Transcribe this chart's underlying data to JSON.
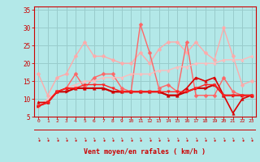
{
  "title": "",
  "xlabel": "Vent moyen/en rafales ( km/h )",
  "background_color": "#b3e8e8",
  "grid_color": "#99cccc",
  "x_ticks": [
    0,
    1,
    2,
    3,
    4,
    5,
    6,
    7,
    8,
    9,
    10,
    11,
    12,
    13,
    14,
    15,
    16,
    17,
    18,
    19,
    20,
    21,
    22,
    23
  ],
  "ylim": [
    5,
    36
  ],
  "xlim": [
    -0.5,
    23.5
  ],
  "yticks": [
    5,
    10,
    15,
    20,
    25,
    30,
    35
  ],
  "series": [
    {
      "color": "#ffaaaa",
      "lw": 1.0,
      "marker": "D",
      "ms": 2.5,
      "data": [
        17,
        11,
        16,
        17,
        22,
        26,
        22,
        22,
        21,
        20,
        20,
        23,
        20,
        24,
        26,
        26,
        23,
        26,
        23,
        21,
        30,
        22,
        14,
        15
      ]
    },
    {
      "color": "#ff6666",
      "lw": 1.0,
      "marker": "D",
      "ms": 2.5,
      "data": [
        8,
        9,
        12,
        13,
        17,
        13,
        16,
        17,
        17,
        13,
        12,
        31,
        23,
        13,
        14,
        12,
        26,
        11,
        11,
        11,
        16,
        12,
        11,
        11
      ]
    },
    {
      "color": "#ffbbbb",
      "lw": 1.0,
      "marker": "^",
      "ms": 2.5,
      "data": [
        8,
        10,
        12,
        13,
        14,
        15,
        15,
        16,
        16,
        16,
        17,
        17,
        17,
        18,
        18,
        19,
        19,
        20,
        20,
        20,
        21,
        21,
        21,
        22
      ]
    },
    {
      "color": "#dd0000",
      "lw": 1.2,
      "marker": "^",
      "ms": 2.5,
      "data": [
        9,
        9,
        12,
        13,
        13,
        13,
        13,
        13,
        12,
        12,
        12,
        12,
        12,
        12,
        11,
        11,
        13,
        16,
        15,
        16,
        11,
        6,
        10,
        11
      ]
    },
    {
      "color": "#cc0000",
      "lw": 1.5,
      "marker": ">",
      "ms": 2.5,
      "data": [
        8,
        9,
        12,
        12,
        13,
        13,
        13,
        13,
        12,
        12,
        12,
        12,
        12,
        12,
        11,
        11,
        12,
        13,
        13,
        14,
        11,
        11,
        11,
        11
      ]
    },
    {
      "color": "#ff2222",
      "lw": 1.0,
      "marker": "v",
      "ms": 2.5,
      "data": [
        8,
        9,
        12,
        13,
        13,
        14,
        14,
        14,
        13,
        12,
        12,
        12,
        12,
        12,
        12,
        12,
        12,
        13,
        14,
        14,
        11,
        11,
        11,
        11
      ]
    }
  ],
  "tick_color": "#cc0000",
  "label_color": "#cc0000",
  "axis_color": "#cc0000",
  "arrow_symbol": "↘"
}
